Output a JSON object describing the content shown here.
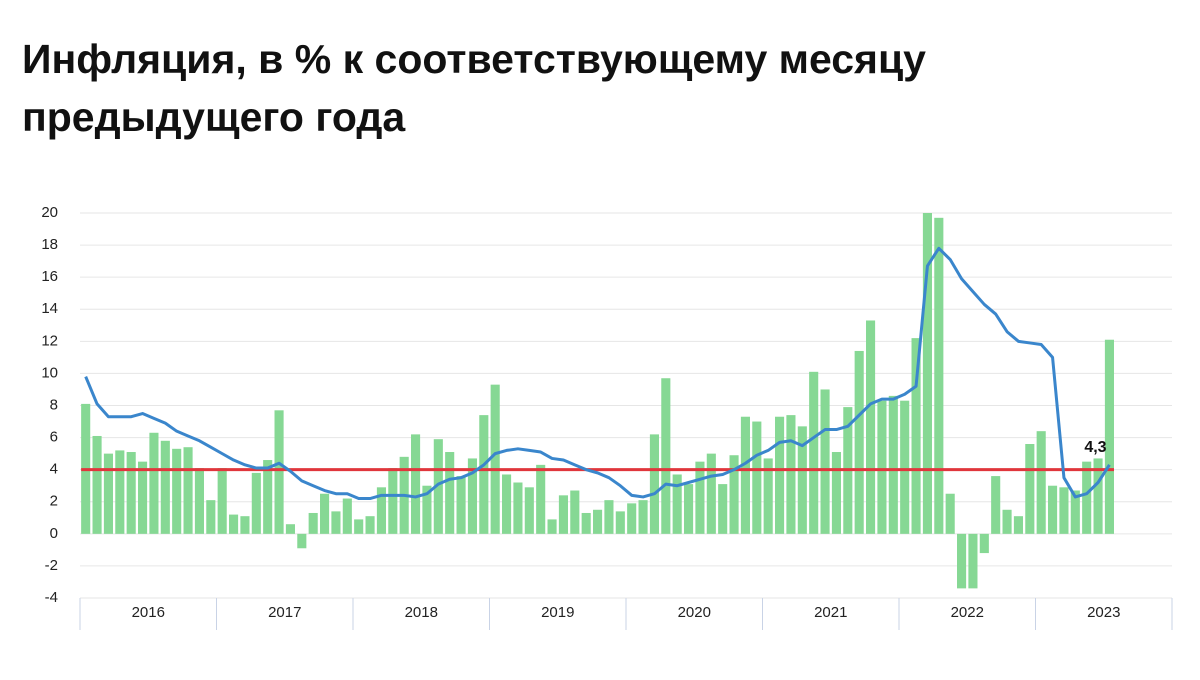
{
  "chart_data": {
    "type": "combo",
    "title": "Инфляция, в % к соответствующему месяцу предыдущего года",
    "title_lines": [
      "Инфляция, в % к соответствующему месяцу",
      "предыдущего года"
    ],
    "year_labels": [
      "2016",
      "2017",
      "2018",
      "2019",
      "2020",
      "2021",
      "2022",
      "2023"
    ],
    "series": [
      {
        "type": "bar",
        "color": "#86d894",
        "values": [
          8.1,
          6.1,
          5.0,
          5.2,
          5.1,
          4.5,
          6.3,
          5.8,
          5.3,
          5.4,
          4.1,
          2.1,
          4.1,
          1.2,
          1.1,
          3.8,
          4.6,
          7.7,
          0.6,
          -0.9,
          1.3,
          2.5,
          1.4,
          2.2,
          0.9,
          1.1,
          2.9,
          4.1,
          4.8,
          6.2,
          3.0,
          5.9,
          5.1,
          3.6,
          4.7,
          7.4,
          9.3,
          3.7,
          3.2,
          2.9,
          4.3,
          0.9,
          2.4,
          2.7,
          1.3,
          1.5,
          2.1,
          1.4,
          1.9,
          2.1,
          6.2,
          9.7,
          3.7,
          3.1,
          4.5,
          5.0,
          3.1,
          4.9,
          7.3,
          7.0,
          4.7,
          7.3,
          7.4,
          6.7,
          10.1,
          9.0,
          5.1,
          7.9,
          11.4,
          13.3,
          8.3,
          8.6,
          8.3,
          12.2,
          20.0,
          19.7,
          2.5,
          -3.4,
          -3.4,
          -1.2,
          3.6,
          1.5,
          1.1,
          5.6,
          6.4,
          3.0,
          2.9,
          2.7,
          4.5,
          4.7,
          12.1
        ]
      },
      {
        "type": "line",
        "color": "#3a86cc",
        "values": [
          9.8,
          8.1,
          7.3,
          7.3,
          7.3,
          7.5,
          7.2,
          6.9,
          6.4,
          6.1,
          5.8,
          5.4,
          5.0,
          4.6,
          4.3,
          4.1,
          4.1,
          4.4,
          3.9,
          3.3,
          3.0,
          2.7,
          2.5,
          2.5,
          2.2,
          2.2,
          2.4,
          2.4,
          2.4,
          2.3,
          2.5,
          3.1,
          3.4,
          3.5,
          3.8,
          4.3,
          5.0,
          5.2,
          5.3,
          5.2,
          5.1,
          4.7,
          4.6,
          4.3,
          4.0,
          3.8,
          3.5,
          3.0,
          2.4,
          2.3,
          2.5,
          3.1,
          3.0,
          3.2,
          3.4,
          3.6,
          3.7,
          4.0,
          4.4,
          4.9,
          5.2,
          5.7,
          5.8,
          5.5,
          6.0,
          6.5,
          6.5,
          6.7,
          7.4,
          8.1,
          8.4,
          8.4,
          8.7,
          9.2,
          16.7,
          17.8,
          17.1,
          15.9,
          15.1,
          14.3,
          13.7,
          12.6,
          12.0,
          11.9,
          11.8,
          11.0,
          3.5,
          2.3,
          2.5,
          3.2,
          4.3
        ],
        "value_labels": [
          null,
          null,
          null,
          null,
          null,
          null,
          null,
          null,
          null,
          null,
          null,
          null,
          null,
          null,
          null,
          null,
          null,
          null,
          null,
          null,
          null,
          null,
          null,
          null,
          null,
          null,
          null,
          null,
          null,
          null,
          null,
          null,
          null,
          null,
          null,
          null,
          null,
          null,
          null,
          null,
          null,
          null,
          null,
          null,
          null,
          null,
          null,
          null,
          null,
          null,
          null,
          null,
          null,
          null,
          null,
          null,
          null,
          null,
          null,
          null,
          null,
          null,
          null,
          null,
          null,
          null,
          null,
          null,
          null,
          null,
          null,
          null,
          null,
          null,
          null,
          null,
          null,
          null,
          null,
          null,
          null,
          null,
          null,
          null,
          null,
          null,
          null,
          null,
          null,
          null,
          "4,3"
        ]
      }
    ],
    "target": 4,
    "target_color": "#e0363c",
    "ylim": [
      -4,
      20
    ],
    "yticks": [
      -4,
      -2,
      0,
      2,
      4,
      6,
      8,
      10,
      12,
      14,
      16,
      18,
      20
    ],
    "grid": true
  }
}
